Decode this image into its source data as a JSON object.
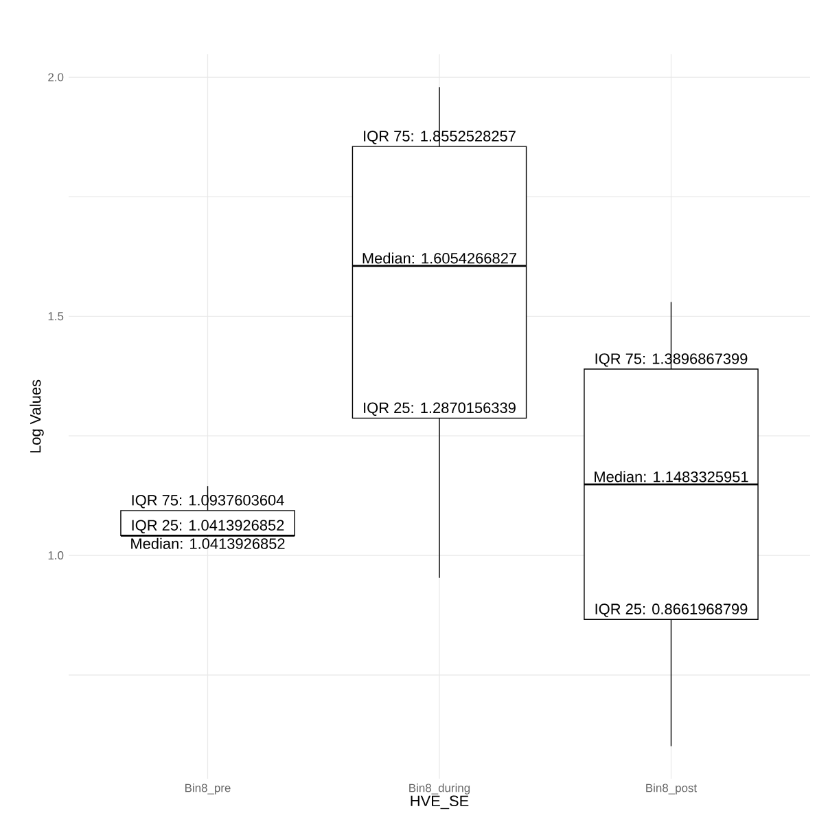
{
  "chart_data": {
    "type": "box",
    "xlabel": "HVE_SE",
    "ylabel": "Log Values",
    "categories": [
      "Bin8_pre",
      "Bin8_during",
      "Bin8_post"
    ],
    "boxes": [
      {
        "low": 1.04,
        "q1": 1.0413926852,
        "median": 1.0413926852,
        "q3": 1.0937603604,
        "high": 1.145
      },
      {
        "low": 0.953,
        "q1": 1.2870156339,
        "median": 1.6054266827,
        "q3": 1.8552528257,
        "high": 1.979
      },
      {
        "low": 0.601,
        "q1": 0.8661968799,
        "median": 1.1483325951,
        "q3": 1.3896867399,
        "high": 1.53
      }
    ],
    "ylim": [
      0.533,
      2.048
    ],
    "yticks": [
      {
        "value": 0.75,
        "label": null
      },
      {
        "value": 1,
        "label": "1.0"
      },
      {
        "value": 1.25,
        "label": null
      },
      1.5,
      {
        "value": 1.75,
        "label": null
      },
      {
        "value": 2,
        "label": "2.0"
      }
    ],
    "grid": true,
    "annotations": [
      {
        "text": "IQR 25: 1.0413926852",
        "x": "Bin8_pre",
        "y": 1.0413926852
      },
      {
        "text": "Median: 1.0413926852",
        "x": "Bin8_pre",
        "y": 1.0413926852
      },
      {
        "text": "IQR 75: 1.0937603604",
        "x": "Bin8_pre",
        "y": 1.0937603604
      },
      {
        "text": "IQR 25: 1.2870156339",
        "x": "Bin8_during",
        "y": 1.2870156339
      },
      {
        "text": "Median: 1.6054266827",
        "x": "Bin8_during",
        "y": 1.6054266827
      },
      {
        "text": "IQR 75: 1.8552528257",
        "x": "Bin8_during",
        "y": 1.8552528257
      },
      {
        "text": "IQR 25: 0.8661968799",
        "x": "Bin8_post",
        "y": 0.8661968799
      },
      {
        "text": "Median: 1.1483325951",
        "x": "Bin8_post",
        "y": 1.1483325951
      },
      {
        "text": "IQR 75: 1.3896867399",
        "x": "Bin8_post",
        "y": 1.3896867399
      }
    ]
  }
}
